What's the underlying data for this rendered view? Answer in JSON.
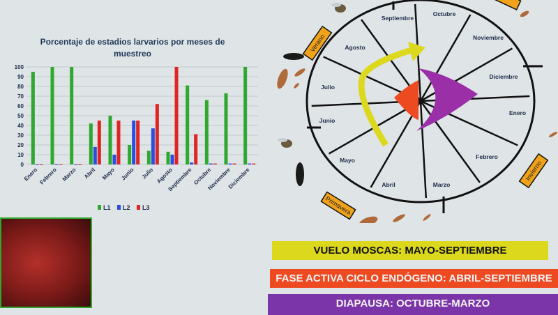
{
  "chart_data": {
    "type": "bar",
    "title": "Porcentaje de estadios larvarios por meses de muestreo",
    "categories": [
      "Enero",
      "Febrero",
      "Marzo",
      "Abril",
      "Mayo",
      "Junio",
      "Julio",
      "Agosto",
      "Septiembre",
      "Octubre",
      "Noviembre",
      "Diciembre"
    ],
    "series": [
      {
        "name": "L1",
        "color": "#2ea82e",
        "values": [
          95,
          100,
          100,
          42,
          50,
          20,
          14,
          13,
          81,
          66,
          73,
          100
        ]
      },
      {
        "name": "L2",
        "color": "#2a4fe0",
        "values": [
          0,
          0,
          0,
          18,
          10,
          45,
          37,
          10,
          2,
          1,
          1,
          1
        ]
      },
      {
        "name": "L3",
        "color": "#e02424",
        "values": [
          0,
          0,
          0,
          45,
          45,
          45,
          62,
          100,
          31,
          1,
          1,
          1
        ]
      }
    ],
    "yticks": [
      "0",
      "10",
      "20",
      "30",
      "40",
      "50",
      "60",
      "70",
      "80",
      "90",
      "100"
    ],
    "ylim": [
      0,
      100
    ],
    "grid": true,
    "legend": "bottom"
  },
  "wheel": {
    "months": [
      "Septiembre",
      "Octubre",
      "Noviembre",
      "Diciembre",
      "Enero",
      "Febrero",
      "Marzo",
      "Abril",
      "Mayo",
      "Junio",
      "Julio",
      "Agosto"
    ],
    "seasons": [
      "Verano",
      "Primavera",
      "Invierno"
    ],
    "colors": {
      "flight": "#dcd81e",
      "active": "#ee4a22",
      "diapause": "#9b2fa8",
      "season_box": "#f0a21a"
    }
  },
  "banners": {
    "flight": "VUELO MOSCAS: MAYO-SEPTIEMBRE",
    "active": "FASE ACTIVA CICLO ENDÓGENO: ABRIL-SEPTIEMBRE",
    "diapause": "DIAPAUSA: OCTUBRE-MARZO"
  }
}
